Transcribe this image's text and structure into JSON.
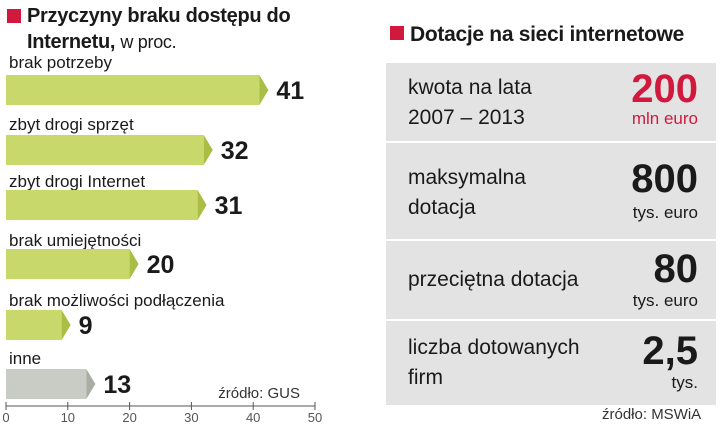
{
  "left_chart": {
    "title_bold": "Przyczyny braku dostępu do Internetu,",
    "title_unit": "w proc.",
    "source": "źródło: GUS",
    "accent_color": "#d1193e"
  },
  "chart_data": {
    "type": "bar",
    "orientation": "horizontal",
    "categories": [
      "brak potrzeby",
      "zbyt drogi sprzęt",
      "zbyt drogi Internet",
      "brak umiejętności",
      "brak możliwości podłączenia",
      "inne"
    ],
    "values": [
      41,
      32,
      31,
      20,
      9,
      13
    ],
    "value_labels": [
      "41",
      "32",
      "31",
      "20",
      "9",
      "13"
    ],
    "xlim": [
      0,
      50
    ],
    "xticks": [
      "0",
      "10",
      "20",
      "30",
      "40",
      "50"
    ],
    "colors": {
      "bar": "#c8d86a",
      "bar_edge": "#aabd45",
      "bar_other": "#c9ccc4",
      "bar_other_edge": "#a9ada3"
    },
    "grid": false
  },
  "right_panel": {
    "title": "Dotacje na sieci internetowe",
    "accent_color": "#d1193e",
    "source": "źródło: MSWiA",
    "rows": [
      {
        "label": "kwota na lata\n2007 – 2013",
        "value": "200",
        "unit": "mln euro",
        "highlight": true
      },
      {
        "label": "maksymalna\ndotacja",
        "value": "800",
        "unit": "tys. euro",
        "highlight": false
      },
      {
        "label": "przeciętna dotacja",
        "value": "80",
        "unit": "tys. euro",
        "highlight": false
      },
      {
        "label": "liczba dotowanych\nfirm",
        "value": "2,5",
        "unit": "tys.",
        "highlight": false
      }
    ]
  }
}
